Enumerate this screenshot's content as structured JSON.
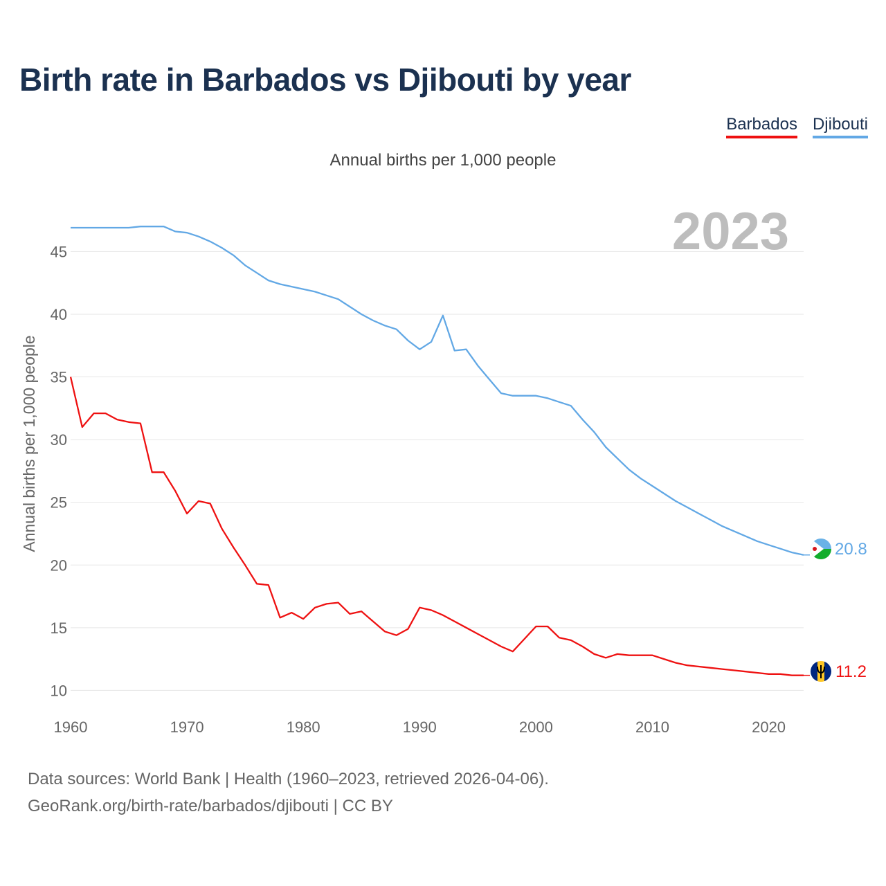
{
  "title": "Birth rate in Barbados vs Djibouti by year",
  "subtitle": "Annual births per 1,000 people",
  "legend": [
    "Barbados",
    "Djibouti"
  ],
  "footer": {
    "line1": "Data sources: World Bank | Health (1960–2023, retrieved 2026-04-06).",
    "line2": "GeoRank.org/birth-rate/barbados/djibouti | CC BY"
  },
  "chart_data": {
    "type": "line",
    "title": "Birth rate in Barbados vs Djibouti by year",
    "ylabel": "Annual births per 1,000 people",
    "xlabel": "",
    "year_label": "2023",
    "xlim": [
      1960,
      2023
    ],
    "ylim": [
      8.2,
      48.5
    ],
    "x_ticks": [
      1960,
      1970,
      1980,
      1990,
      2000,
      2010,
      2020
    ],
    "y_ticks": [
      10,
      15,
      20,
      25,
      30,
      35,
      40,
      45
    ],
    "grid": true,
    "legend_position": "top-right",
    "x": [
      1960,
      1961,
      1962,
      1963,
      1964,
      1965,
      1966,
      1967,
      1968,
      1969,
      1970,
      1971,
      1972,
      1973,
      1974,
      1975,
      1976,
      1977,
      1978,
      1979,
      1980,
      1981,
      1982,
      1983,
      1984,
      1985,
      1986,
      1987,
      1988,
      1989,
      1990,
      1991,
      1992,
      1993,
      1994,
      1995,
      1996,
      1997,
      1998,
      1999,
      2000,
      2001,
      2002,
      2003,
      2004,
      2005,
      2006,
      2007,
      2008,
      2009,
      2010,
      2011,
      2012,
      2013,
      2014,
      2015,
      2016,
      2017,
      2018,
      2019,
      2020,
      2021,
      2022,
      2023
    ],
    "series": [
      {
        "name": "Barbados",
        "color": "#ee1111",
        "end_label": "11.2",
        "values": [
          35.0,
          31.0,
          32.1,
          32.1,
          31.6,
          31.4,
          31.3,
          27.4,
          27.4,
          25.9,
          24.1,
          25.1,
          24.9,
          22.9,
          21.4,
          20.0,
          18.5,
          18.4,
          15.8,
          16.2,
          15.7,
          16.6,
          16.9,
          17.0,
          16.1,
          16.3,
          15.5,
          14.7,
          14.4,
          14.9,
          16.6,
          16.4,
          16.0,
          15.5,
          15.0,
          14.5,
          14.0,
          13.5,
          13.1,
          14.1,
          15.1,
          15.1,
          14.2,
          14.0,
          13.5,
          12.9,
          12.6,
          12.9,
          12.8,
          12.8,
          12.8,
          12.5,
          12.2,
          12.0,
          11.9,
          11.8,
          11.7,
          11.6,
          11.5,
          11.4,
          11.3,
          11.3,
          11.2,
          11.2
        ]
      },
      {
        "name": "Djibouti",
        "color": "#62a8e5",
        "end_label": "20.8",
        "values": [
          46.9,
          46.9,
          46.9,
          46.9,
          46.9,
          46.9,
          47.0,
          47.0,
          47.0,
          46.6,
          46.5,
          46.2,
          45.8,
          45.3,
          44.7,
          43.9,
          43.3,
          42.7,
          42.4,
          42.2,
          42.0,
          41.8,
          41.5,
          41.2,
          40.6,
          40.0,
          39.5,
          39.1,
          38.8,
          37.9,
          37.2,
          37.8,
          39.9,
          37.1,
          37.2,
          35.9,
          34.8,
          33.7,
          33.5,
          33.5,
          33.5,
          33.3,
          33.0,
          32.7,
          31.6,
          30.6,
          29.4,
          28.5,
          27.6,
          26.9,
          26.3,
          25.7,
          25.1,
          24.6,
          24.1,
          23.6,
          23.1,
          22.7,
          22.3,
          21.9,
          21.6,
          21.3,
          21.0,
          20.8
        ]
      }
    ]
  }
}
